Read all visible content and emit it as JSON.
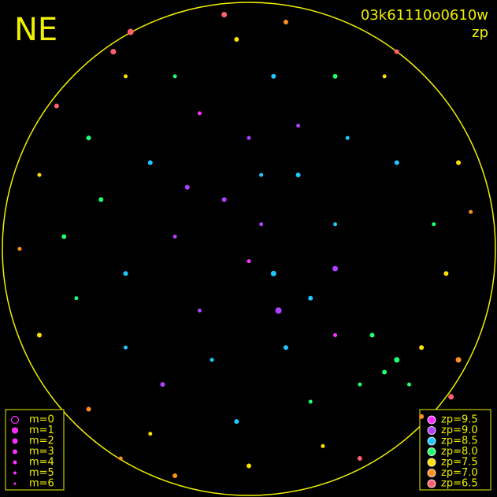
{
  "chart_data": {
    "type": "scatter",
    "corner_label": "NE",
    "title": "03k61110o0610w",
    "subtitle": "zp",
    "xlim": [
      -1,
      1
    ],
    "ylim": [
      -1,
      1
    ],
    "x": [
      -0.1,
      0.05,
      0.2,
      -0.3,
      0.1,
      0.25,
      -0.2,
      0.35,
      -0.4,
      0.0,
      0.4,
      -0.5,
      -0.15,
      0.15,
      0.5,
      0.6,
      0.55,
      0.45,
      0.7,
      0.65,
      -0.6,
      -0.7,
      -0.65,
      0.75,
      0.8,
      0.1,
      -0.3,
      0.35,
      -0.05,
      -0.5,
      0.55,
      0.85,
      -0.85,
      -0.85,
      0.85,
      -0.4,
      0.0,
      0.3,
      -0.65,
      0.7,
      -0.1,
      0.15,
      -0.55,
      -0.78,
      0.6,
      0.9,
      -0.93,
      -0.3,
      0.45,
      0.82,
      -0.2,
      0.0,
      0.35,
      -0.35,
      -0.05,
      0.25,
      -0.25,
      0.6,
      -0.75,
      0.2,
      -0.5,
      0.35,
      0.12,
      -0.48,
      -0.52,
      0.05
    ],
    "y": [
      0.2,
      0.1,
      0.3,
      0.05,
      -0.1,
      -0.2,
      -0.25,
      0.1,
      0.35,
      0.45,
      0.45,
      -0.1,
      -0.45,
      -0.4,
      -0.35,
      -0.45,
      -0.5,
      -0.55,
      -0.4,
      -0.55,
      0.2,
      -0.2,
      0.45,
      0.1,
      -0.1,
      0.7,
      0.7,
      0.7,
      0.85,
      0.7,
      0.7,
      0.35,
      0.3,
      -0.35,
      -0.45,
      -0.75,
      -0.88,
      -0.8,
      -0.65,
      -0.68,
      0.95,
      0.92,
      0.8,
      0.58,
      0.8,
      0.15,
      0.0,
      -0.92,
      -0.85,
      -0.6,
      0.55,
      -0.05,
      -0.08,
      -0.55,
      -0.7,
      -0.62,
      0.25,
      0.35,
      0.05,
      0.5,
      -0.4,
      -0.35,
      -0.25,
      0.88,
      -0.85,
      0.3
    ],
    "values": [
      9.0,
      9.0,
      8.5,
      9.0,
      8.5,
      8.5,
      9.0,
      8.5,
      8.5,
      9.0,
      8.5,
      8.5,
      8.5,
      8.5,
      8.0,
      8.0,
      8.0,
      8.0,
      7.5,
      8.0,
      8.0,
      8.0,
      8.0,
      8.0,
      7.5,
      8.5,
      8.0,
      8.0,
      7.5,
      7.5,
      7.5,
      7.5,
      7.5,
      7.5,
      7.0,
      7.5,
      7.5,
      7.5,
      7.0,
      7.0,
      6.5,
      7.0,
      6.5,
      6.5,
      6.5,
      7.0,
      7.0,
      7.0,
      6.5,
      6.5,
      9.5,
      9.5,
      9.0,
      9.0,
      8.5,
      8.0,
      9.0,
      8.5,
      8.0,
      9.0,
      8.5,
      9.5,
      9.0,
      6.5,
      7.0,
      8.5
    ],
    "sizes": [
      3,
      4,
      3,
      4,
      2,
      3,
      4,
      4,
      3,
      4,
      4,
      3,
      4,
      3,
      3,
      2,
      3,
      4,
      3,
      4,
      3,
      4,
      3,
      4,
      3,
      3,
      4,
      3,
      3,
      4,
      4,
      3,
      4,
      3,
      2,
      4,
      3,
      4,
      3,
      3,
      2,
      3,
      2,
      3,
      3,
      4,
      4,
      3,
      3,
      2,
      4,
      4,
      2,
      3,
      3,
      4,
      3,
      3,
      3,
      4,
      4,
      4,
      1,
      1,
      4,
      4
    ],
    "size_legend": [
      {
        "value": 0,
        "label": "m=0"
      },
      {
        "value": 1,
        "label": "m=1"
      },
      {
        "value": 2,
        "label": "m=2"
      },
      {
        "value": 3,
        "label": "m=3"
      },
      {
        "value": 4,
        "label": "m=4"
      },
      {
        "value": 5,
        "label": "m=5"
      },
      {
        "value": 6,
        "label": "m=6"
      }
    ],
    "color_legend": [
      {
        "value": 9.5,
        "label": "zp=9.5",
        "color": "#ff30ff"
      },
      {
        "value": 9.0,
        "label": "zp=9.0",
        "color": "#b040ff"
      },
      {
        "value": 8.5,
        "label": "zp=8.5",
        "color": "#20c8ff"
      },
      {
        "value": 8.0,
        "label": "zp=8.0",
        "color": "#20ff70"
      },
      {
        "value": 7.5,
        "label": "zp=7.5",
        "color": "#ffe000"
      },
      {
        "value": 7.0,
        "label": "zp=7.0",
        "color": "#ff9020"
      },
      {
        "value": 6.5,
        "label": "zp=6.5",
        "color": "#ff6070"
      }
    ],
    "sky_color": "#000000",
    "horizon_color": "#f0f000"
  }
}
